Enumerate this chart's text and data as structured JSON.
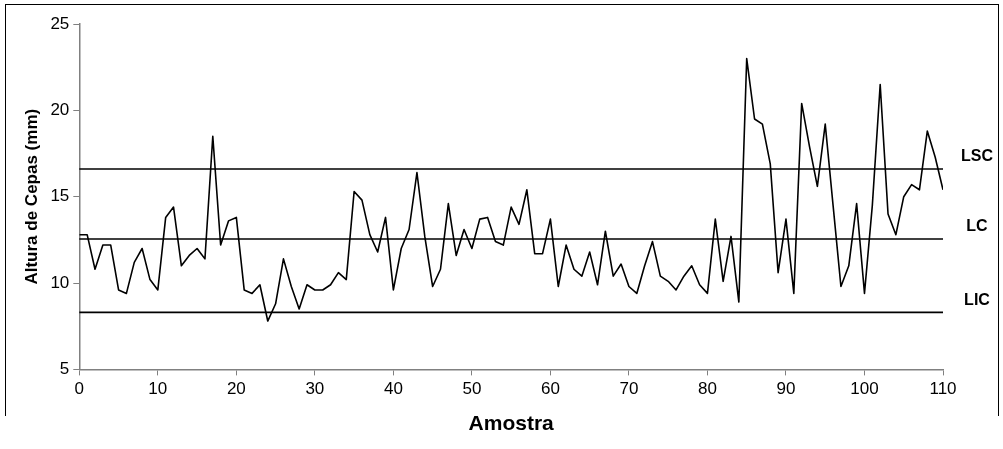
{
  "chart_data": {
    "type": "line",
    "xlabel": "Amostra",
    "ylabel": "Altura de Cepas (mm)",
    "x": [
      0,
      1,
      2,
      3,
      4,
      5,
      6,
      7,
      8,
      9,
      10,
      11,
      12,
      13,
      14,
      15,
      16,
      17,
      18,
      19,
      20,
      21,
      22,
      23,
      24,
      25,
      26,
      27,
      28,
      29,
      30,
      31,
      32,
      33,
      34,
      35,
      36,
      37,
      38,
      39,
      40,
      41,
      42,
      43,
      44,
      45,
      46,
      47,
      48,
      49,
      50,
      51,
      52,
      53,
      54,
      55,
      56,
      57,
      58,
      59,
      60,
      61,
      62,
      63,
      64,
      65,
      66,
      67,
      68,
      69,
      70,
      71,
      72,
      73,
      74,
      75,
      76,
      77,
      78,
      79,
      80,
      81,
      82,
      83,
      84,
      85,
      86,
      87,
      88,
      89,
      90,
      91,
      92,
      93,
      94,
      95,
      96,
      97,
      98,
      99,
      100,
      101,
      102,
      103,
      104,
      105,
      106,
      107,
      108,
      109,
      110
    ],
    "series": [
      {
        "color": "#000000",
        "values": [
          12.8,
          12.8,
          10.8,
          12.2,
          12.2,
          9.6,
          9.4,
          11.2,
          12.0,
          10.2,
          9.6,
          13.8,
          14.4,
          11.0,
          11.6,
          12.0,
          11.4,
          18.5,
          12.2,
          13.6,
          13.8,
          9.6,
          9.4,
          9.9,
          7.8,
          8.8,
          11.4,
          9.8,
          8.5,
          9.9,
          9.6,
          9.6,
          9.9,
          10.6,
          10.2,
          15.3,
          14.8,
          12.8,
          11.8,
          13.8,
          9.6,
          12.0,
          13.1,
          16.4,
          12.7,
          9.8,
          10.8,
          14.6,
          11.6,
          13.1,
          12.0,
          13.7,
          13.8,
          12.4,
          12.2,
          14.4,
          13.4,
          15.4,
          11.7,
          11.7,
          13.7,
          9.8,
          12.2,
          10.8,
          10.4,
          11.8,
          9.9,
          13.0,
          10.4,
          11.1,
          9.8,
          9.4,
          11.0,
          12.4,
          10.4,
          10.1,
          9.6,
          10.4,
          11.0,
          9.9,
          9.4,
          13.7,
          10.1,
          12.7,
          8.9,
          23.0,
          19.5,
          19.2,
          16.9,
          10.6,
          13.7,
          9.4,
          20.4,
          17.9,
          15.6,
          19.2,
          14.5,
          9.8,
          11.0,
          14.6,
          9.4,
          14.5,
          21.5,
          14.0,
          12.8,
          15.0,
          15.7,
          15.4,
          18.8,
          17.3,
          15.4
        ]
      }
    ],
    "xlim": [
      0,
      110
    ],
    "xticks": [
      0,
      10,
      20,
      30,
      40,
      50,
      60,
      70,
      80,
      90,
      100,
      110
    ],
    "ylim": [
      5,
      25
    ],
    "yticks": [
      5,
      10,
      15,
      20,
      25
    ],
    "ref_lines": [
      {
        "axis": "y",
        "value": 16.6,
        "label": "LSC",
        "color": "#000000"
      },
      {
        "axis": "y",
        "value": 12.55,
        "label": "LC",
        "color": "#000000"
      },
      {
        "axis": "y",
        "value": 8.3,
        "label": "LIC",
        "color": "#000000"
      }
    ],
    "grid": false,
    "legend": false,
    "marker": "none",
    "line_style": "solid"
  }
}
